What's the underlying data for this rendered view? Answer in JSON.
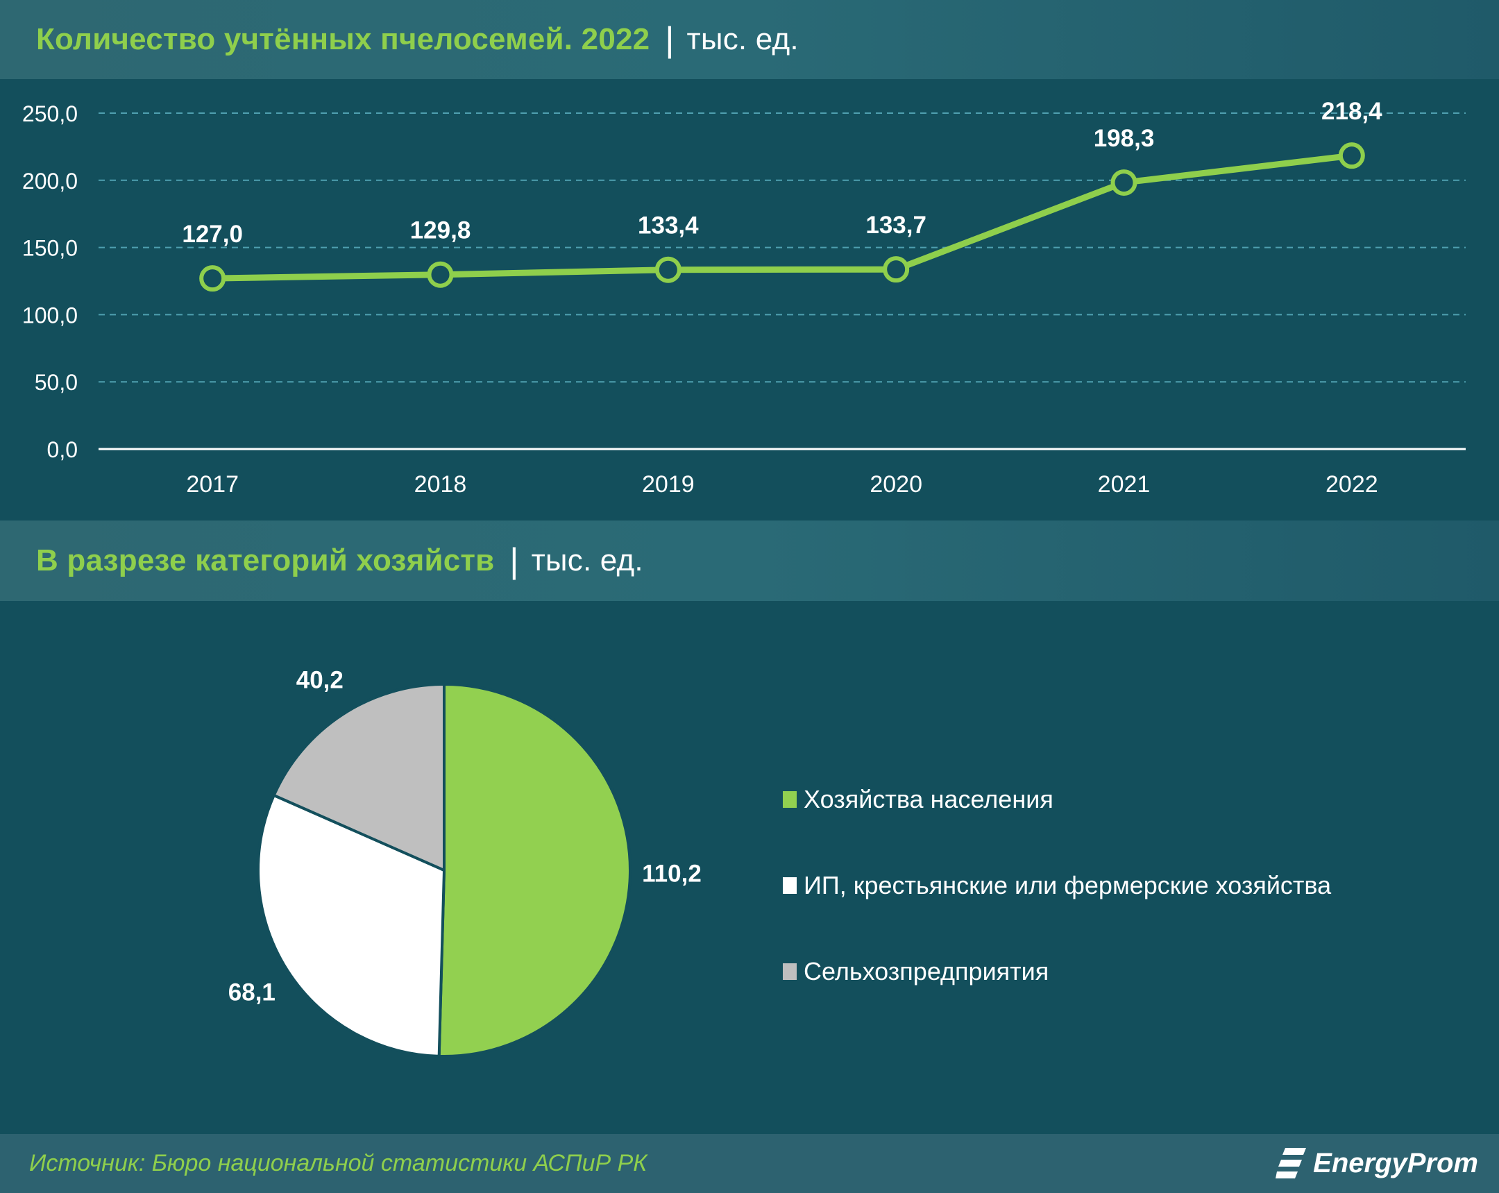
{
  "header1": {
    "title": "Количество учтённых пчелосемей. 2022",
    "separator": "|",
    "unit": "тыс. ед."
  },
  "header2": {
    "title": "В разрезе категорий хозяйств",
    "separator": "|",
    "unit": "тыс. ед."
  },
  "footer": {
    "source": "Источник: Бюро национальной статистики АСПиР РК",
    "brand": "EnergyProm"
  },
  "chart_data": [
    {
      "type": "line",
      "x": [
        "2017",
        "2018",
        "2019",
        "2020",
        "2021",
        "2022"
      ],
      "values": [
        127.0,
        129.8,
        133.4,
        133.7,
        198.3,
        218.4
      ],
      "value_labels": [
        "127,0",
        "129,8",
        "133,4",
        "133,7",
        "198,3",
        "218,4"
      ],
      "yticks": [
        "0,0",
        "50,0",
        "100,0",
        "150,0",
        "200,0",
        "250,0"
      ],
      "ylim": [
        0,
        250
      ],
      "grid": true,
      "color": "#8fcf4c"
    },
    {
      "type": "pie",
      "slices": [
        {
          "label": "Хозяйства населения",
          "value": 110.2,
          "value_label": "110,2",
          "color": "#92d050"
        },
        {
          "label": "ИП, крестьянские или фермерские хозяйства",
          "value": 68.1,
          "value_label": "68,1",
          "color": "#ffffff"
        },
        {
          "label": "Сельхозпредприятия",
          "value": 40.2,
          "value_label": "40,2",
          "color": "#bfbfbf"
        }
      ],
      "legend_position": "right"
    }
  ],
  "colors": {
    "background": "#134f5c",
    "header": "#2e6872",
    "accent": "#8fcf4c"
  },
  "icons": {
    "brand_logo": "energyprom-logo-icon"
  }
}
